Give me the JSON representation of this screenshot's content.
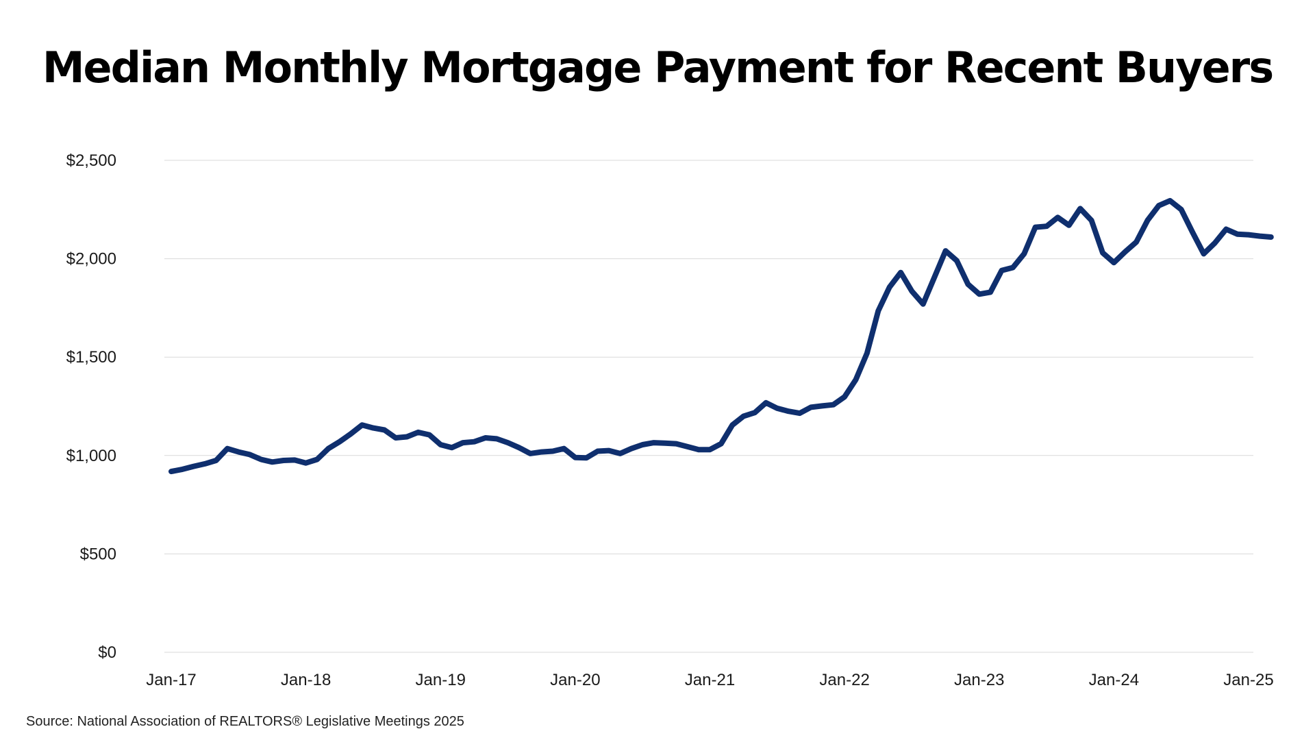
{
  "chart_data": {
    "type": "line",
    "title": "Median Monthly Mortgage Payment for Recent Buyers",
    "source": "Source: National Association of REALTORS® Legislative Meetings 2025",
    "ylim": [
      0,
      2500
    ],
    "y_ticks": [
      0,
      500,
      1000,
      1500,
      2000,
      2500
    ],
    "y_tick_labels": [
      "$0",
      "$500",
      "$1,000",
      "$1,500",
      "$2,000",
      "$2,500"
    ],
    "x_tick_labels": [
      "Jan-17",
      "Jan-18",
      "Jan-19",
      "Jan-20",
      "Jan-21",
      "Jan-22",
      "Jan-23",
      "Jan-24",
      "Jan-25"
    ],
    "x_start": "Jan-17",
    "grid": true,
    "legend": "none",
    "line_color": "#0f2f6e",
    "series": [
      {
        "x_start": "Jan-17",
        "frequency": "monthly",
        "values": [
          919,
          930,
          945,
          958,
          975,
          1035,
          1018,
          1005,
          980,
          967,
          975,
          977,
          962,
          980,
          1035,
          1070,
          1110,
          1155,
          1140,
          1130,
          1090,
          1095,
          1118,
          1105,
          1055,
          1040,
          1065,
          1070,
          1090,
          1085,
          1065,
          1040,
          1010,
          1018,
          1022,
          1035,
          990,
          988,
          1022,
          1025,
          1010,
          1035,
          1055,
          1065,
          1063,
          1060,
          1045,
          1030,
          1030,
          1060,
          1155,
          1200,
          1218,
          1268,
          1240,
          1225,
          1215,
          1245,
          1252,
          1258,
          1298,
          1385,
          1520,
          1735,
          1855,
          1930,
          1835,
          1770,
          1905,
          2040,
          1990,
          1870,
          1820,
          1830,
          1940,
          1955,
          2025,
          2160,
          2165,
          2210,
          2170,
          2255,
          2195,
          2030,
          1980,
          2035,
          2085,
          2195,
          2270,
          2295,
          2250,
          2135,
          2025,
          2080,
          2150,
          2125,
          2122,
          2115,
          2110
        ]
      }
    ]
  }
}
